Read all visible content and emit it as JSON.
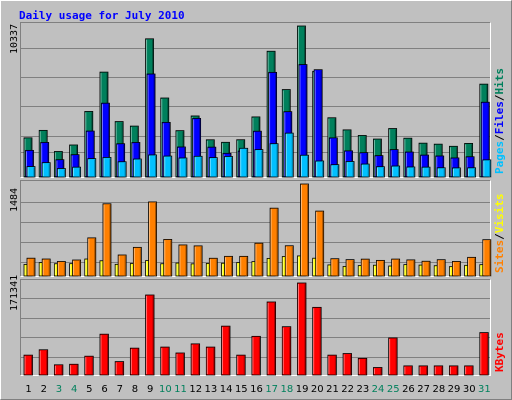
{
  "title": "Daily usage for July 2010",
  "colors": {
    "hits": "#00805c",
    "files": "#0000ff",
    "pages": "#00c0ff",
    "visits": "#ffff00",
    "sites": "#ff8000",
    "kbytes": "#ff0000",
    "title": "#0000ff",
    "weekend_day": "#00805c",
    "weekday": "#000000",
    "slash": "#000000"
  },
  "chart_data": [
    {
      "type": "bar",
      "panel": "hits-files-pages",
      "y_max_label": "10337",
      "ylim": [
        0,
        10337
      ],
      "grid": true,
      "legend": [
        "Pages",
        "/",
        "Files",
        "/",
        "Hits"
      ],
      "categories": [
        "1",
        "2",
        "3",
        "4",
        "5",
        "6",
        "7",
        "8",
        "9",
        "10",
        "11",
        "12",
        "13",
        "14",
        "15",
        "16",
        "17",
        "18",
        "19",
        "20",
        "21",
        "22",
        "23",
        "24",
        "25",
        "26",
        "27",
        "28",
        "29",
        "30",
        "31"
      ],
      "series": [
        {
          "name": "Hits",
          "values": [
            2681,
            3192,
            1747,
            2192,
            4488,
            7180,
            3796,
            3485,
            9460,
            5408,
            3174,
            4179,
            2548,
            2375,
            2552,
            4114,
            8609,
            5987,
            10337,
            7236,
            4056,
            3227,
            2844,
            2598,
            3319,
            2657,
            2316,
            2248,
            2102,
            2299,
            6357
          ]
        },
        {
          "name": "Files",
          "values": [
            1822,
            2366,
            1185,
            1529,
            3144,
            5053,
            2278,
            2365,
            7051,
            3739,
            2055,
            4011,
            2043,
            1620,
            1778,
            3134,
            7163,
            4474,
            7698,
            7346,
            2678,
            1789,
            1666,
            1464,
            1877,
            1709,
            1500,
            1440,
            1306,
            1387,
            5118
          ]
        },
        {
          "name": "Pages",
          "values": [
            715,
            982,
            581,
            673,
            1258,
            1337,
            1043,
            1231,
            1510,
            1433,
            1302,
            1417,
            1326,
            1406,
            1965,
            1876,
            2279,
            3003,
            1490,
            1096,
            843,
            1061,
            886,
            704,
            751,
            686,
            674,
            631,
            622,
            629,
            1172
          ]
        }
      ]
    },
    {
      "type": "bar",
      "panel": "sites-visits",
      "y_max_label": "1484",
      "ylim": [
        0,
        1484
      ],
      "grid": true,
      "legend": [
        "Sites",
        "/",
        "Visits"
      ],
      "categories": [
        "1",
        "2",
        "3",
        "4",
        "5",
        "6",
        "7",
        "8",
        "9",
        "10",
        "11",
        "12",
        "13",
        "14",
        "15",
        "16",
        "17",
        "18",
        "19",
        "20",
        "21",
        "22",
        "23",
        "24",
        "25",
        "26",
        "27",
        "28",
        "29",
        "30",
        "31"
      ],
      "series": [
        {
          "name": "Visits",
          "values": [
            186,
            216,
            198,
            199,
            274,
            246,
            188,
            201,
            249,
            198,
            209,
            196,
            203,
            206,
            218,
            232,
            284,
            314,
            324,
            287,
            179,
            154,
            168,
            174,
            161,
            184,
            176,
            166,
            151,
            172,
            183
          ]
        },
        {
          "name": "Sites",
          "values": [
            287,
            274,
            234,
            258,
            615,
            1165,
            339,
            462,
            1195,
            590,
            501,
            486,
            286,
            317,
            317,
            529,
            1094,
            488,
            1484,
            1047,
            279,
            264,
            272,
            252,
            273,
            260,
            238,
            263,
            235,
            301,
            586
          ]
        }
      ]
    },
    {
      "type": "bar",
      "panel": "kbytes",
      "y_max_label": "171341",
      "ylim": [
        0,
        171341
      ],
      "grid": true,
      "legend": [
        "KBytes"
      ],
      "categories": [
        "1",
        "2",
        "3",
        "4",
        "5",
        "6",
        "7",
        "8",
        "9",
        "10",
        "11",
        "12",
        "13",
        "14",
        "15",
        "16",
        "17",
        "18",
        "19",
        "20",
        "21",
        "22",
        "23",
        "24",
        "25",
        "26",
        "27",
        "28",
        "29",
        "30",
        "31"
      ],
      "series": [
        {
          "name": "KBytes",
          "values": [
            37000,
            47000,
            19000,
            20000,
            35000,
            76000,
            25000,
            50000,
            149000,
            52000,
            41000,
            58000,
            52000,
            91000,
            37000,
            72000,
            136000,
            90000,
            171341,
            126000,
            37000,
            40000,
            31000,
            14000,
            69000,
            17000,
            17000,
            17000,
            17000,
            17000,
            79000
          ]
        }
      ]
    }
  ],
  "day_labels": [
    {
      "t": "1",
      "weekend": false
    },
    {
      "t": "2",
      "weekend": false
    },
    {
      "t": "3",
      "weekend": true
    },
    {
      "t": "4",
      "weekend": true
    },
    {
      "t": "5",
      "weekend": false
    },
    {
      "t": "6",
      "weekend": false
    },
    {
      "t": "7",
      "weekend": false
    },
    {
      "t": "8",
      "weekend": false
    },
    {
      "t": "9",
      "weekend": false
    },
    {
      "t": "10",
      "weekend": true
    },
    {
      "t": "11",
      "weekend": true
    },
    {
      "t": "12",
      "weekend": false
    },
    {
      "t": "13",
      "weekend": false
    },
    {
      "t": "14",
      "weekend": false
    },
    {
      "t": "15",
      "weekend": false
    },
    {
      "t": "16",
      "weekend": false
    },
    {
      "t": "17",
      "weekend": true
    },
    {
      "t": "18",
      "weekend": true
    },
    {
      "t": "19",
      "weekend": false
    },
    {
      "t": "20",
      "weekend": false
    },
    {
      "t": "21",
      "weekend": false
    },
    {
      "t": "22",
      "weekend": false
    },
    {
      "t": "23",
      "weekend": false
    },
    {
      "t": "24",
      "weekend": true
    },
    {
      "t": "25",
      "weekend": true
    },
    {
      "t": "26",
      "weekend": false
    },
    {
      "t": "27",
      "weekend": false
    },
    {
      "t": "28",
      "weekend": false
    },
    {
      "t": "29",
      "weekend": false
    },
    {
      "t": "30",
      "weekend": false
    },
    {
      "t": "31",
      "weekend": true
    }
  ]
}
